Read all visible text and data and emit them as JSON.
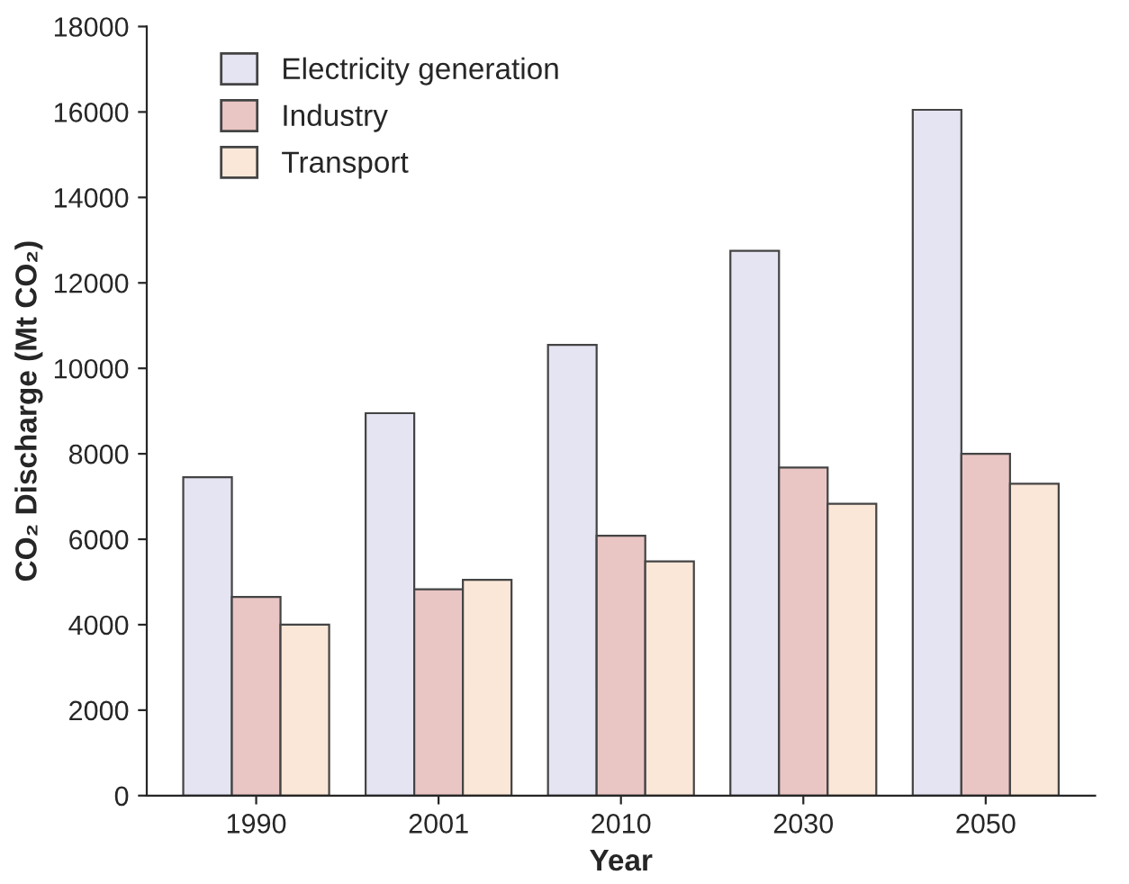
{
  "chart_data": {
    "type": "bar",
    "xlabel": "Year",
    "ylabel": "CO₂ Discharge (Mt CO₂)",
    "categories": [
      "1990",
      "2001",
      "2010",
      "2030",
      "2050"
    ],
    "series": [
      {
        "name": "Electricity generation",
        "color": "#e4e4f2",
        "values": [
          7450,
          8950,
          10550,
          12750,
          16050
        ]
      },
      {
        "name": "Industry",
        "color": "#e9c6c4",
        "values": [
          4650,
          4830,
          6080,
          7680,
          8000
        ]
      },
      {
        "name": "Transport",
        "color": "#fbe7d8",
        "values": [
          4000,
          5050,
          5480,
          6830,
          7300
        ]
      }
    ],
    "ylim": [
      0,
      18000
    ],
    "yticks": [
      0,
      2000,
      4000,
      6000,
      8000,
      10000,
      12000,
      14000,
      16000,
      18000
    ],
    "grid": false,
    "legend": "top left"
  }
}
